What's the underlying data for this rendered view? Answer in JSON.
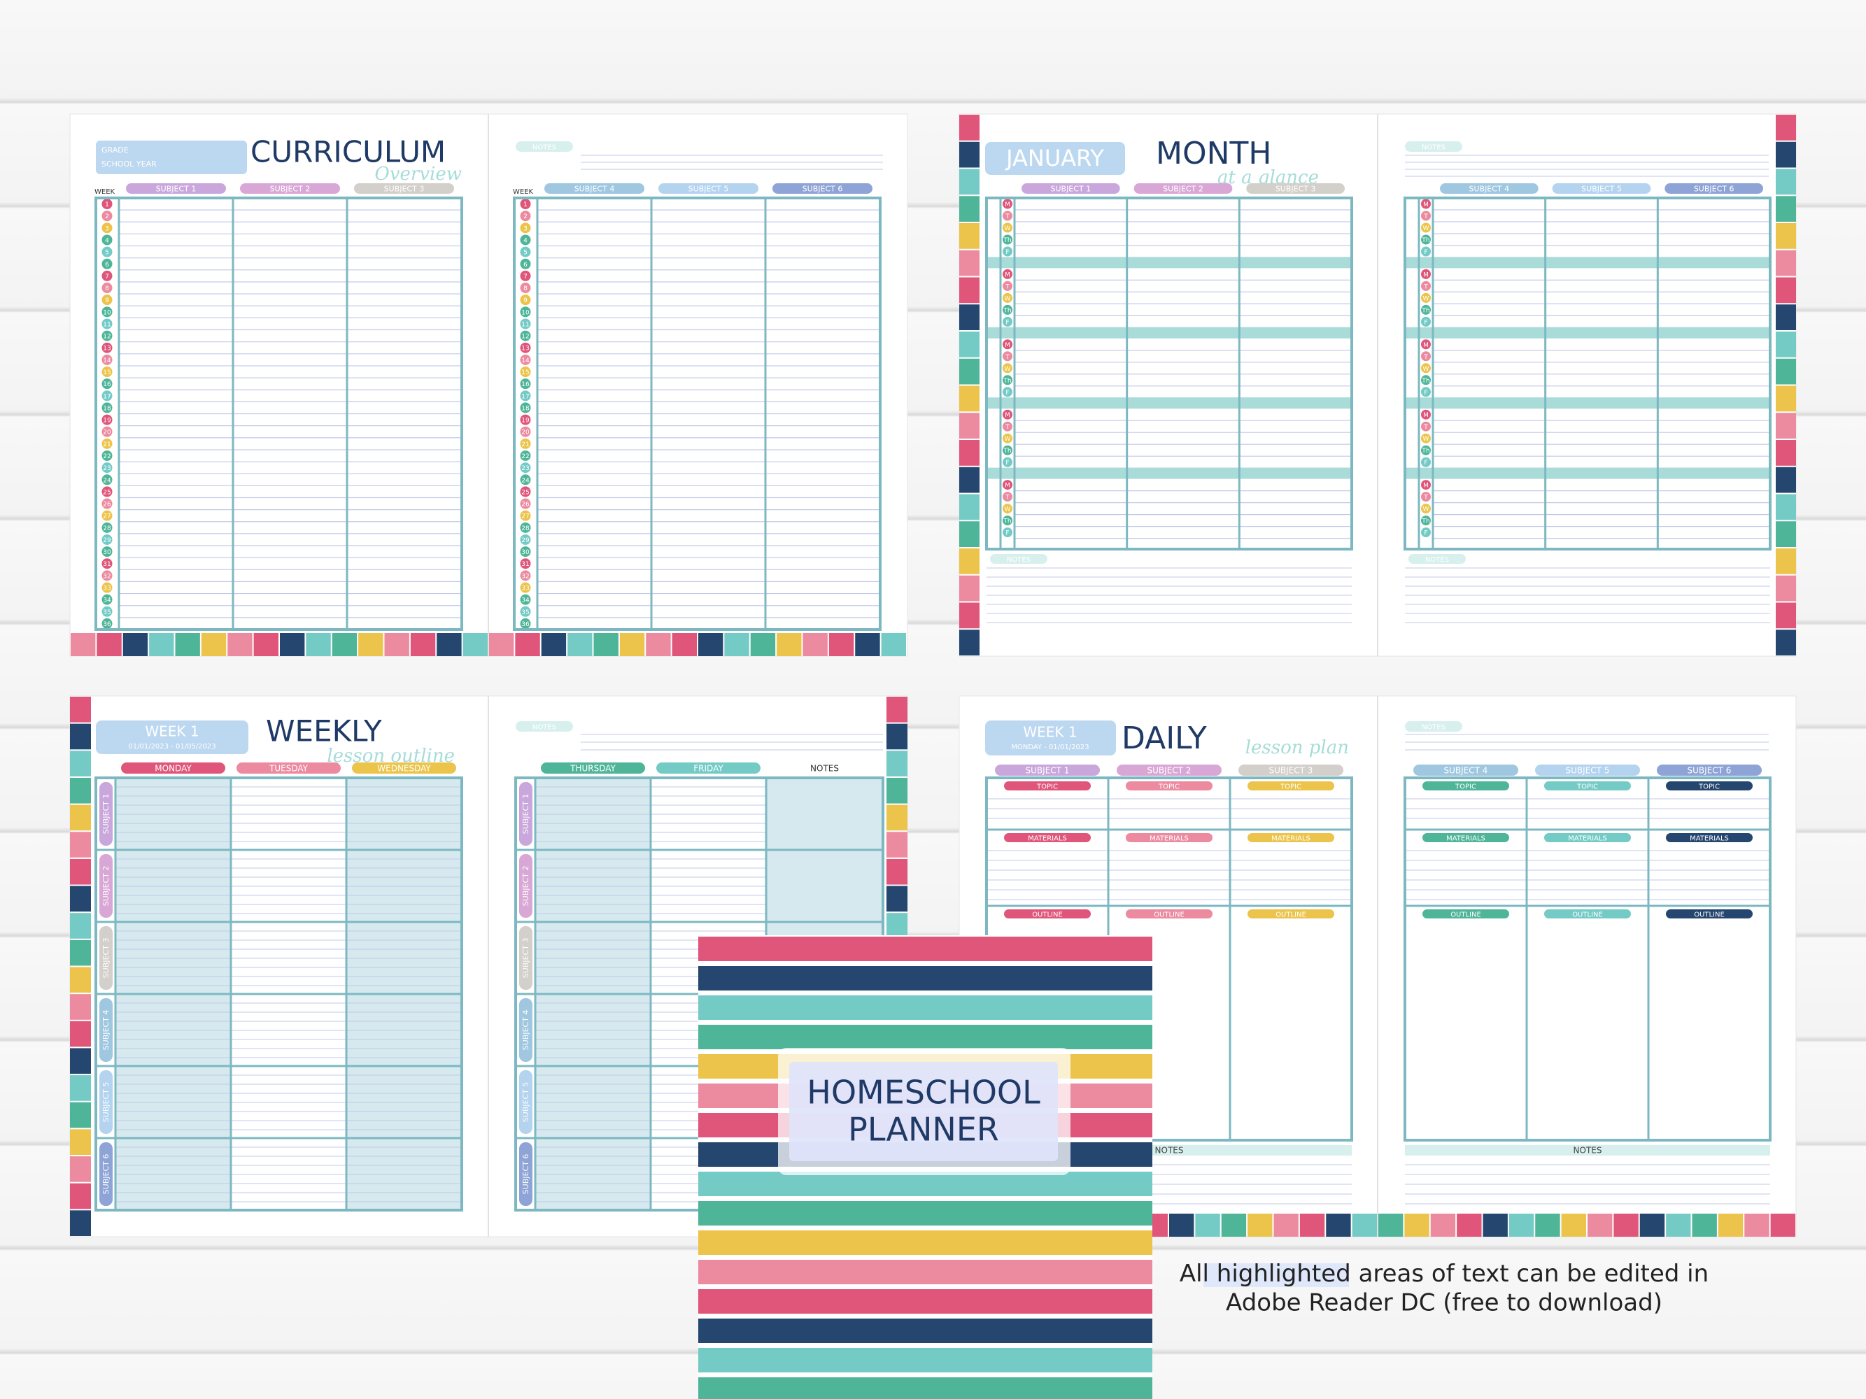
{
  "curriculum": {
    "grade_label": "GRADE",
    "school_year_label": "SCHOOL YEAR",
    "title": "CURRICULUM",
    "subtitle": "Overview",
    "week_label": "WEEK",
    "notes_label": "NOTES",
    "subjects": [
      "SUBJECT 1",
      "SUBJECT 2",
      "SUBJECT 3",
      "SUBJECT 4",
      "SUBJECT 5",
      "SUBJECT 6"
    ],
    "weeks": [
      "1",
      "2",
      "3",
      "4",
      "5",
      "6",
      "7",
      "8",
      "9",
      "10",
      "11",
      "12",
      "13",
      "14",
      "15",
      "16",
      "17",
      "18",
      "19",
      "20",
      "21",
      "22",
      "23",
      "24",
      "25",
      "26",
      "27",
      "28",
      "29",
      "30",
      "31",
      "32",
      "33",
      "34",
      "35",
      "36"
    ]
  },
  "month": {
    "month": "JANUARY",
    "title": "MONTH",
    "subtitle": "at a glance",
    "notes_label": "NOTES",
    "subjects": [
      "SUBJECT 1",
      "SUBJECT 2",
      "SUBJECT 3",
      "SUBJECT 4",
      "SUBJECT 5",
      "SUBJECT 6"
    ],
    "days": [
      "M",
      "T",
      "W",
      "Th",
      "F"
    ]
  },
  "weekly": {
    "week": "WEEK 1",
    "dates": "01/01/2023 - 01/05/2023",
    "title": "WEEKLY",
    "subtitle": "lesson outline",
    "notes_label": "NOTES",
    "days": [
      "MONDAY",
      "TUESDAY",
      "WEDNESDAY",
      "THURSDAY",
      "FRIDAY"
    ],
    "subjects": [
      "SUBJECT 1",
      "SUBJECT 2",
      "SUBJECT 3",
      "SUBJECT 4",
      "SUBJECT 5",
      "SUBJECT 6"
    ]
  },
  "daily": {
    "week": "WEEK 1",
    "date": "MONDAY - 01/01/2023",
    "title": "DAILY",
    "subtitle": "lesson plan",
    "notes_label": "NOTES",
    "subjects": [
      "SUBJECT 1",
      "SUBJECT 2",
      "SUBJECT 3",
      "SUBJECT 4",
      "SUBJECT 5",
      "SUBJECT 6"
    ],
    "fields": [
      "TOPIC",
      "MATERIALS",
      "OUTLINE"
    ]
  },
  "cover": {
    "title": [
      "HOMESCHOOL",
      "PLANNER"
    ]
  },
  "caption": {
    "line1": [
      "All ",
      "highlighted",
      " areas of text can be edited in"
    ],
    "line2": "Adobe Reader DC (free to download)"
  }
}
